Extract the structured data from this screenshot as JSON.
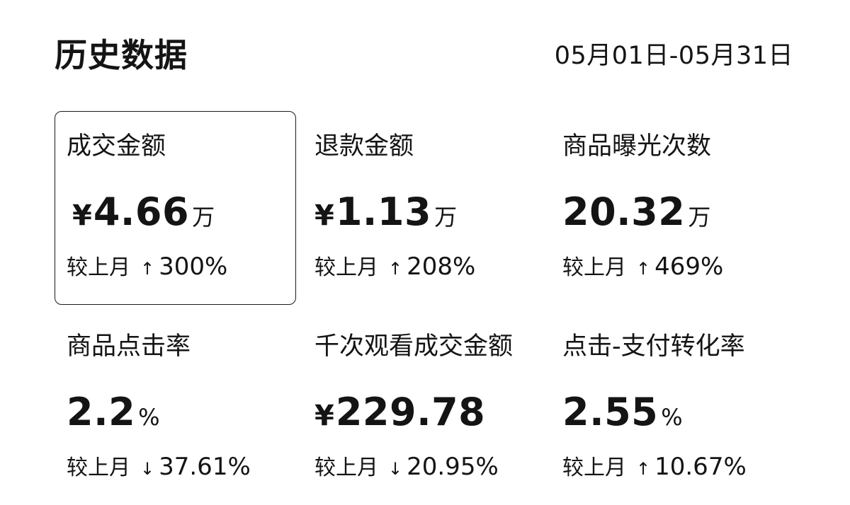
{
  "header": {
    "title": "历史数据",
    "date_range": "05月01日-05月31日"
  },
  "metrics": [
    {
      "label": "成交金额",
      "prefix": "¥",
      "value": "4.66",
      "unit": "万",
      "change_label": "较上月",
      "change_direction": "up",
      "change_value": "300%",
      "selected": true
    },
    {
      "label": "退款金额",
      "prefix": "¥",
      "value": "1.13",
      "unit": "万",
      "change_label": "较上月",
      "change_direction": "up",
      "change_value": "208%",
      "selected": false
    },
    {
      "label": "商品曝光次数",
      "prefix": "",
      "value": "20.32",
      "unit": "万",
      "change_label": "较上月",
      "change_direction": "up",
      "change_value": "469%",
      "selected": false
    },
    {
      "label": "商品点击率",
      "prefix": "",
      "value": "2.2",
      "unit": "%",
      "change_label": "较上月",
      "change_direction": "down",
      "change_value": "37.61%",
      "selected": false
    },
    {
      "label": "千次观看成交金额",
      "prefix": "¥",
      "value": "229.78",
      "unit": "",
      "change_label": "较上月",
      "change_direction": "down",
      "change_value": "20.95%",
      "selected": false
    },
    {
      "label": "点击-支付转化率",
      "prefix": "",
      "value": "2.55",
      "unit": "%",
      "change_label": "较上月",
      "change_direction": "up",
      "change_value": "10.67%",
      "selected": false
    }
  ],
  "icons": {
    "up": "↑",
    "down": "↓"
  }
}
